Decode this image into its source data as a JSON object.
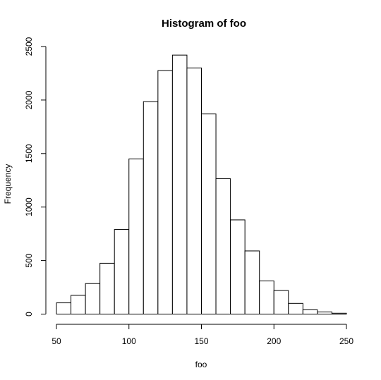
{
  "chart_data": {
    "type": "bar",
    "title": "Histogram of foo",
    "xlabel": "foo",
    "ylabel": "Frequency",
    "bin_edges": [
      50,
      60,
      70,
      80,
      90,
      100,
      110,
      120,
      130,
      140,
      150,
      160,
      170,
      180,
      190,
      200,
      210,
      220,
      230,
      240,
      250
    ],
    "values": [
      105,
      175,
      285,
      475,
      790,
      1450,
      1985,
      2275,
      2420,
      2300,
      1870,
      1265,
      880,
      590,
      310,
      220,
      100,
      40,
      20,
      8
    ],
    "xlim": [
      50,
      250
    ],
    "ylim": [
      0,
      2500
    ],
    "x_ticks": [
      50,
      100,
      150,
      200,
      250
    ],
    "y_ticks": [
      0,
      500,
      1000,
      1500,
      2000,
      2500
    ],
    "grid": false,
    "bar_fill": "#ffffff",
    "bar_stroke": "#000000"
  }
}
